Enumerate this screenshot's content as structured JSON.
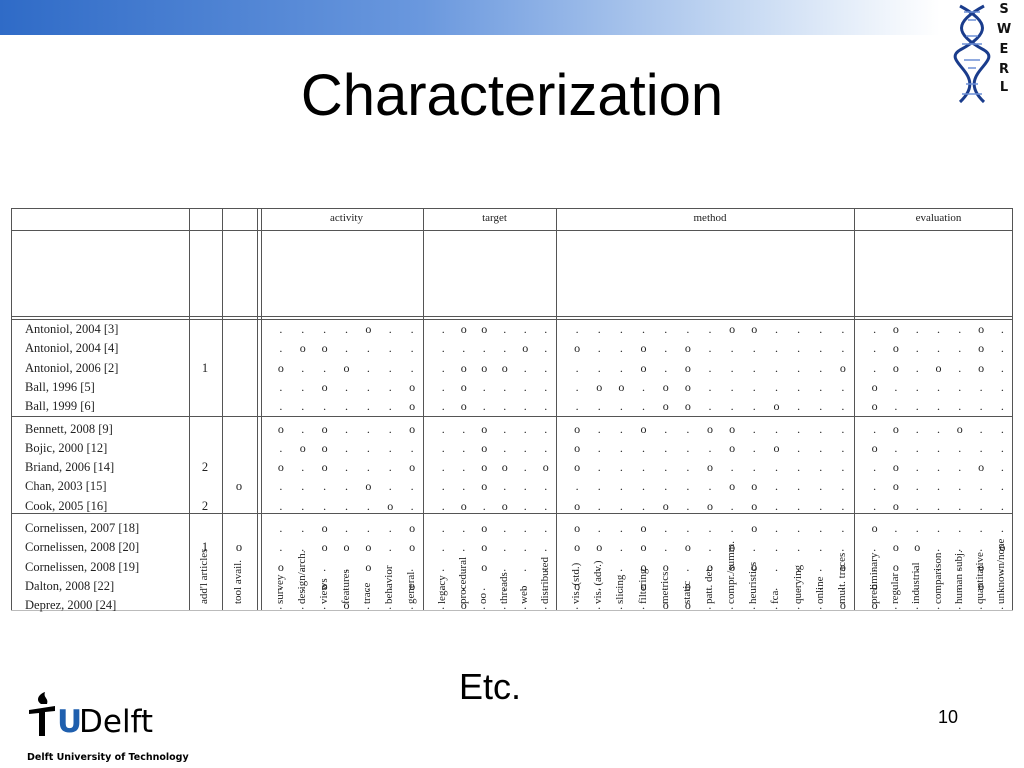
{
  "slide": {
    "title": "Characterization",
    "etc": "Etc.",
    "page_number": "10",
    "swerl_letters": [
      "S",
      "W",
      "E",
      "R",
      "L"
    ],
    "university": "Delft University of Technology",
    "logo": {
      "tu": "TU",
      "delft": "Delft"
    }
  },
  "table": {
    "groups": [
      "activity",
      "target",
      "method",
      "evaluation"
    ],
    "extra_columns": [
      "add'l articles",
      "tool avail."
    ],
    "columns": {
      "activity": [
        "survey",
        "design/arch.",
        "views",
        "features",
        "trace",
        "behavior",
        "general"
      ],
      "target": [
        "legacy",
        "procedural",
        "oo",
        "threads",
        "web",
        "distributed"
      ],
      "method": [
        "vis. (std.)",
        "vis. (adv.)",
        "slicing",
        "filtering",
        "metrics",
        "static",
        "patt. det.",
        "compr./summ.",
        "heuristics",
        "fca",
        "querying",
        "online",
        "mult. traces"
      ],
      "evaluation": [
        "preliminary",
        "regular",
        "industrial",
        "comparison",
        "human subj.",
        "quantitative",
        "unknown/none"
      ]
    },
    "rows": [
      {
        "name": "Antoniol, 2004 [3]",
        "addl": "",
        "tool": "",
        "a": ". . . . o . .",
        "t": ". o o . . .",
        "m": ". . . . . . . o o . . . .",
        "e": ". o . . . o ."
      },
      {
        "name": "Antoniol, 2004 [4]",
        "addl": "",
        "tool": "",
        "a": ". o o . . . .",
        "t": ". . . . o .",
        "m": "o . . o . o . . . . . . .",
        "e": ". o . . . o ."
      },
      {
        "name": "Antoniol, 2006 [2]",
        "addl": "1",
        "tool": "",
        "a": "o . . o . . .",
        "t": ". o o o . .",
        "m": ". . . o . o . . . . . . o",
        "e": ". o . o . o ."
      },
      {
        "name": "Ball, 1996 [5]",
        "addl": "",
        "tool": "",
        "a": ". . o . . . o",
        "t": ". o . . . .",
        "m": ". o o . o o . . . . . . .",
        "e": "o . . . . . ."
      },
      {
        "name": "Ball, 1999 [6]",
        "addl": "",
        "tool": "",
        "a": ". . . . . . o",
        "t": ". o . . . .",
        "m": ". . . . o o . . . o . . .",
        "e": "o . . . . . ."
      },
      {
        "name": "Bennett, 2008 [9]",
        "addl": "",
        "tool": "",
        "a": "o . o . . . o",
        "t": ". . o . . .",
        "m": "o . . o . . o o . . . . .",
        "e": ". o . . o . ."
      },
      {
        "name": "Bojic, 2000 [12]",
        "addl": "",
        "tool": "",
        "a": ". o o . . . .",
        "t": ". . o . . .",
        "m": "o . . . . . . o . o . . .",
        "e": "o . . . . . ."
      },
      {
        "name": "Briand, 2006 [14]",
        "addl": "2",
        "tool": "",
        "a": "o . o . . . o",
        "t": ". . o o . o",
        "m": "o . . . . . o . . . . . .",
        "e": ". o . . . o ."
      },
      {
        "name": "Chan, 2003 [15]",
        "addl": "",
        "tool": "o",
        "a": ". . . . o . .",
        "t": ". . o . . .",
        "m": ". . . . . . . o o . . . .",
        "e": ". o . . . . ."
      },
      {
        "name": "Cook, 2005 [16]",
        "addl": "2",
        "tool": "",
        "a": ". . . . . o .",
        "t": ". o . o . .",
        "m": "o . . . o . o . o . . . .",
        "e": ". o . . . . ."
      },
      {
        "name": "Cornelissen, 2007 [18]",
        "addl": "",
        "tool": "",
        "a": ". . o . . . o",
        "t": ". . o . . .",
        "m": "o . . o . . . . o . . . .",
        "e": "o . . . . . ."
      },
      {
        "name": "Cornelissen, 2008 [20]",
        "addl": "1",
        "tool": "o",
        "a": ". . o o o . o",
        "t": ". . o . . .",
        "m": "o o . o . o . o . . . . .",
        "e": ". o o . . . o"
      },
      {
        "name": "Cornelissen, 2008 [19]",
        "addl": "",
        "tool": "",
        "a": "o . . . o . .",
        "t": ". . o . . .",
        "m": ". . . o o . o o o . . . o",
        "e": ". o . . . o ."
      },
      {
        "name": "Dalton, 2008 [22]",
        "addl": "",
        "tool": "",
        "a": ". . o . . . o",
        "t": ". . . . . .",
        "m": "o . . o . o . . . . . . .",
        "e": "o . . . . o ."
      },
      {
        "name": "Deprez, 2000 [24]",
        "addl": "",
        "tool": "",
        "a": ". . . o . . .",
        "t": ". o . . . .",
        "m": ". . . . o o . . . . . . o",
        "e": "o . . . . . ."
      }
    ]
  },
  "colors": {
    "header_bar": "#2f6bc7",
    "tu_red": "#d9261c",
    "tu_blue": "#1f5fae"
  }
}
